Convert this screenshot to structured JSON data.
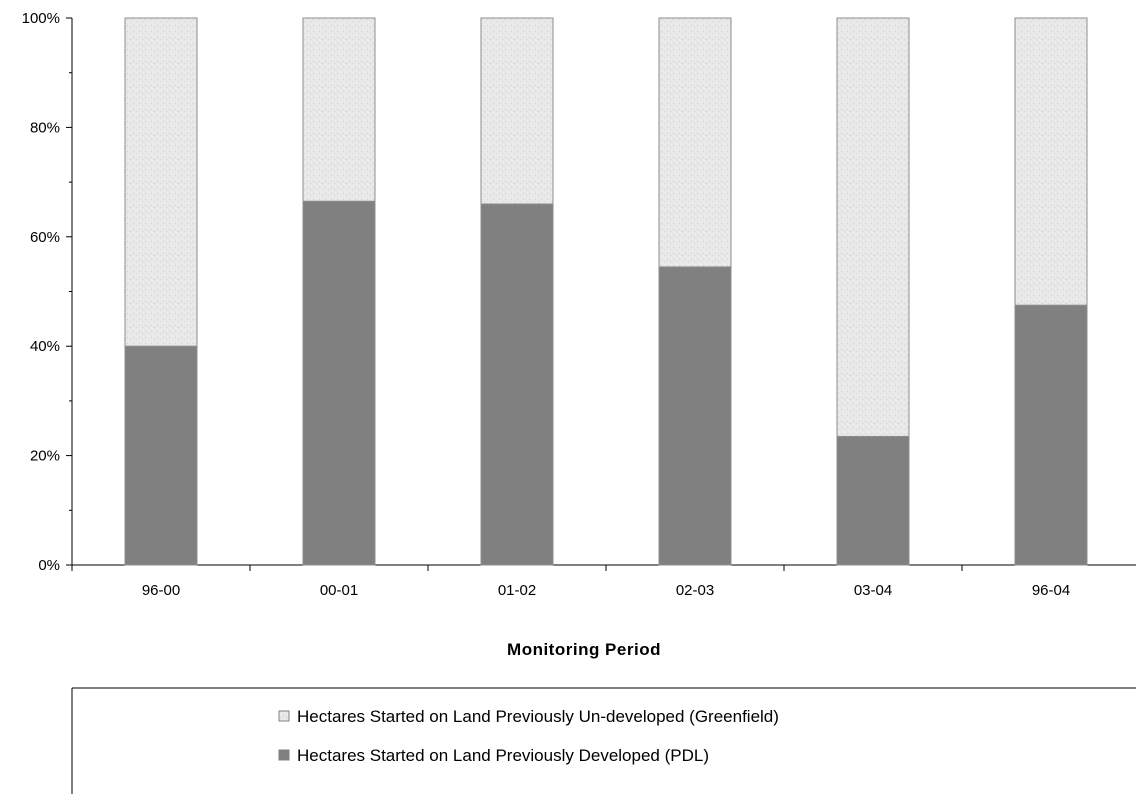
{
  "chart_data": {
    "type": "bar",
    "stacked": true,
    "percent_stacked": true,
    "categories": [
      "96-00",
      "00-01",
      "01-02",
      "02-03",
      "03-04",
      "96-04"
    ],
    "series": [
      {
        "name": "Hectares Started on Land Previously Developed (PDL)",
        "values": [
          40,
          66.5,
          66,
          54.5,
          23.5,
          47.5
        ],
        "color": "#808080"
      },
      {
        "name": "Hectares Started on Land Previously Un-developed (Greenfield)",
        "values": [
          60,
          33.5,
          34,
          45.5,
          76.5,
          52.5
        ],
        "color": "#e6e6e6"
      }
    ],
    "y_ticks": [
      "0%",
      "20%",
      "40%",
      "60%",
      "80%",
      "100%"
    ],
    "ylim": [
      0,
      100
    ],
    "xlabel": "Monitoring Period",
    "ylabel": "",
    "grid": false,
    "legend_position": "bottom"
  },
  "legend": {
    "items": [
      {
        "label": "Hectares Started on Land Previously Un-developed (Greenfield)",
        "color": "#e6e6e6"
      },
      {
        "label": "Hectares Started on Land Previously Developed (PDL)",
        "color": "#808080"
      }
    ]
  }
}
